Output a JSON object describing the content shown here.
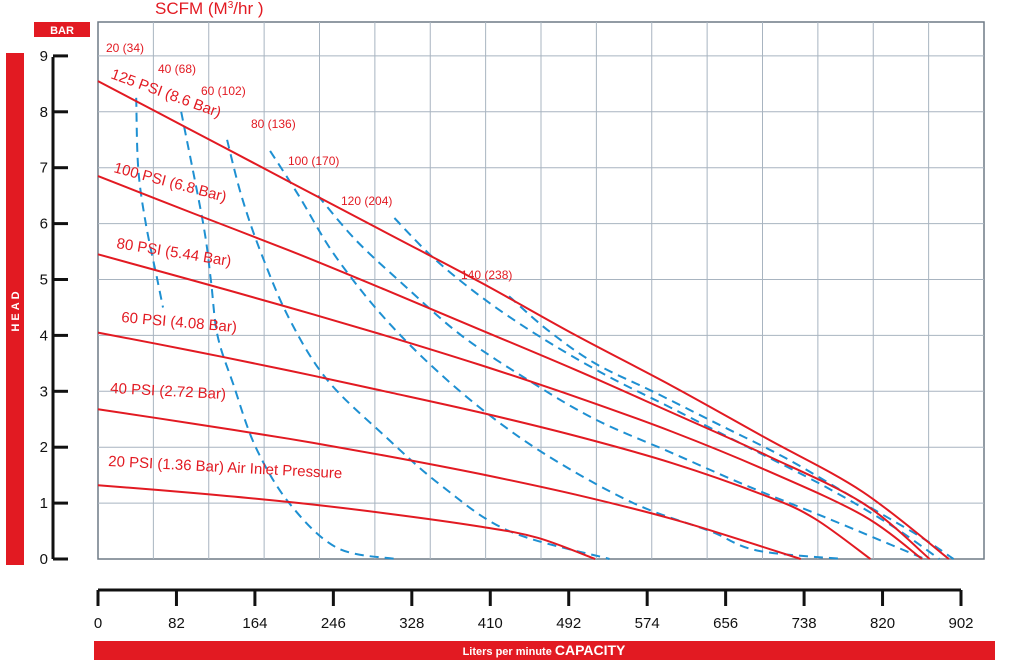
{
  "chart_data": {
    "type": "line",
    "top_label": "SCFM (M",
    "top_label_sup": "3",
    "top_label_end": "/hr )",
    "y_unit_badge": "BAR",
    "y_axis_title": "HEAD",
    "x_axis_title_prefix": "Liters per minute ",
    "x_axis_title_bold": "CAPACITY",
    "xlim": [
      0,
      902
    ],
    "ylim": [
      0,
      9
    ],
    "x_ticks": [
      0,
      82,
      164,
      246,
      328,
      410,
      492,
      574,
      656,
      738,
      820,
      902
    ],
    "y_ticks": [
      0,
      1,
      2,
      3,
      4,
      5,
      6,
      7,
      8,
      9
    ],
    "grid": true,
    "colors": {
      "red": "#e21a22",
      "blue": "#1e90d2",
      "grid": "#a8b4c0",
      "frame": "#6f7a85"
    },
    "pressure_curves": [
      {
        "label": "125 PSI (8.6 Bar)",
        "points": [
          [
            0,
            8.55
          ],
          [
            100,
            7.65
          ],
          [
            200,
            6.75
          ],
          [
            300,
            5.85
          ],
          [
            400,
            4.95
          ],
          [
            500,
            4.0
          ],
          [
            600,
            3.1
          ],
          [
            700,
            2.15
          ],
          [
            800,
            1.2
          ],
          [
            890,
            0.0
          ]
        ]
      },
      {
        "label": "100 PSI (6.8 Bar)",
        "points": [
          [
            0,
            6.85
          ],
          [
            100,
            6.18
          ],
          [
            200,
            5.52
          ],
          [
            300,
            4.82
          ],
          [
            400,
            4.1
          ],
          [
            500,
            3.38
          ],
          [
            600,
            2.62
          ],
          [
            700,
            1.85
          ],
          [
            800,
            1.0
          ],
          [
            870,
            0.0
          ]
        ]
      },
      {
        "label": "80 PSI (5.44 Bar)",
        "points": [
          [
            0,
            5.45
          ],
          [
            100,
            4.98
          ],
          [
            200,
            4.5
          ],
          [
            300,
            4.0
          ],
          [
            400,
            3.47
          ],
          [
            500,
            2.9
          ],
          [
            600,
            2.28
          ],
          [
            700,
            1.58
          ],
          [
            800,
            0.78
          ],
          [
            862,
            0.0
          ]
        ]
      },
      {
        "label": "60 PSI (4.08 Bar)",
        "points": [
          [
            0,
            4.05
          ],
          [
            100,
            3.72
          ],
          [
            200,
            3.37
          ],
          [
            300,
            3.0
          ],
          [
            400,
            2.62
          ],
          [
            500,
            2.2
          ],
          [
            600,
            1.72
          ],
          [
            700,
            1.12
          ],
          [
            750,
            0.72
          ],
          [
            808,
            0.0
          ]
        ]
      },
      {
        "label": "40 PSI (2.72 Bar)",
        "points": [
          [
            0,
            2.68
          ],
          [
            100,
            2.42
          ],
          [
            200,
            2.15
          ],
          [
            300,
            1.85
          ],
          [
            400,
            1.52
          ],
          [
            500,
            1.15
          ],
          [
            600,
            0.72
          ],
          [
            680,
            0.3
          ],
          [
            735,
            0.0
          ]
        ]
      },
      {
        "label": "20 PSI (1.36 Bar) Air Inlet Pressure",
        "points": [
          [
            0,
            1.32
          ],
          [
            100,
            1.18
          ],
          [
            200,
            1.02
          ],
          [
            300,
            0.82
          ],
          [
            400,
            0.58
          ],
          [
            460,
            0.38
          ],
          [
            520,
            0.0
          ]
        ]
      }
    ],
    "air_curves": [
      {
        "label": "20 (34)",
        "points": [
          [
            40,
            8.25
          ],
          [
            42,
            7.0
          ],
          [
            50,
            6.0
          ],
          [
            62,
            5.0
          ],
          [
            68,
            4.5
          ]
        ]
      },
      {
        "label": "40 (68)",
        "points": [
          [
            87,
            8.0
          ],
          [
            110,
            6.0
          ],
          [
            118,
            5.0
          ],
          [
            125,
            4.0
          ],
          [
            142,
            3.1
          ],
          [
            165,
            2.0
          ],
          [
            200,
            1.0
          ],
          [
            250,
            0.2
          ],
          [
            312,
            0.0
          ]
        ]
      },
      {
        "label": "60 (102)",
        "points": [
          [
            135,
            7.5
          ],
          [
            150,
            6.5
          ],
          [
            170,
            5.5
          ],
          [
            200,
            4.3
          ],
          [
            240,
            3.2
          ],
          [
            300,
            2.2
          ],
          [
            360,
            1.3
          ],
          [
            430,
            0.5
          ],
          [
            535,
            0.0
          ]
        ]
      },
      {
        "label": "80 (136)",
        "points": [
          [
            180,
            7.3
          ],
          [
            210,
            6.5
          ],
          [
            245,
            5.5
          ],
          [
            290,
            4.5
          ],
          [
            340,
            3.6
          ],
          [
            400,
            2.7
          ],
          [
            470,
            1.85
          ],
          [
            560,
            1.0
          ],
          [
            640,
            0.5
          ],
          [
            690,
            0.15
          ],
          [
            780,
            0.0
          ]
        ]
      },
      {
        "label": "100 (170)",
        "points": [
          [
            230,
            6.5
          ],
          [
            270,
            5.7
          ],
          [
            320,
            4.9
          ],
          [
            380,
            4.0
          ],
          [
            450,
            3.2
          ],
          [
            520,
            2.5
          ],
          [
            600,
            1.9
          ],
          [
            680,
            1.3
          ],
          [
            760,
            0.75
          ],
          [
            830,
            0.25
          ],
          [
            865,
            0.0
          ]
        ]
      },
      {
        "label": "120 (204)",
        "points": [
          [
            310,
            6.1
          ],
          [
            350,
            5.4
          ],
          [
            400,
            4.7
          ],
          [
            460,
            4.0
          ],
          [
            530,
            3.3
          ],
          [
            600,
            2.7
          ],
          [
            680,
            2.0
          ],
          [
            760,
            1.3
          ],
          [
            830,
            0.6
          ],
          [
            880,
            0.0
          ]
        ]
      },
      {
        "label": "140 (238)",
        "points": [
          [
            430,
            4.7
          ],
          [
            470,
            4.1
          ],
          [
            520,
            3.5
          ],
          [
            580,
            3.0
          ],
          [
            650,
            2.4
          ],
          [
            720,
            1.8
          ],
          [
            790,
            1.1
          ],
          [
            860,
            0.4
          ],
          [
            895,
            0.0
          ]
        ]
      }
    ]
  }
}
